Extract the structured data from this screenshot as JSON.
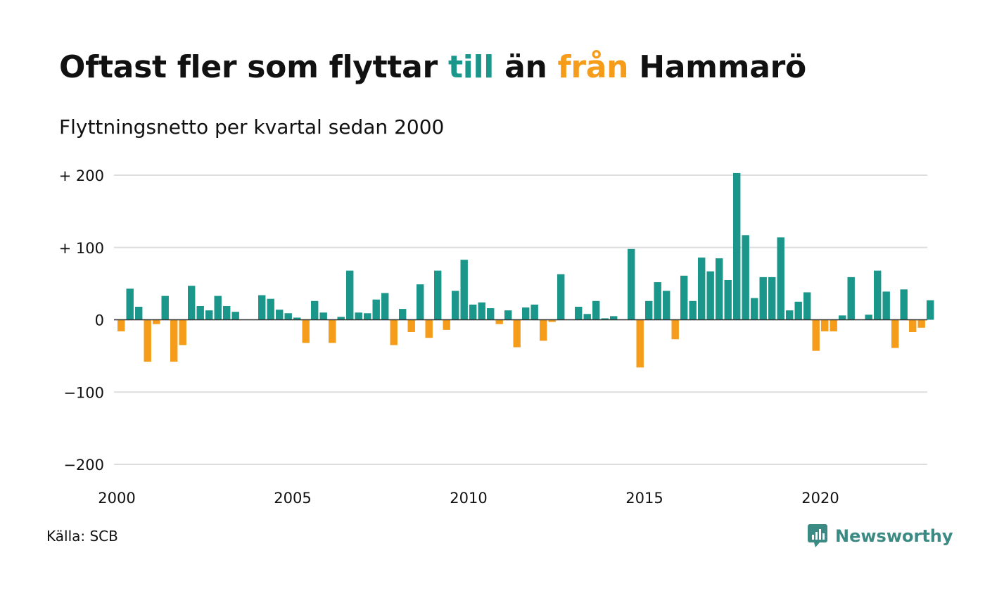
{
  "header": {
    "title_part1": "Oftast fler som flyttar ",
    "title_till": "till",
    "title_part2": " än ",
    "title_fran": "från",
    "title_part3": " Hammarö",
    "subtitle": "Flyttningsnetto per kvartal sedan 2000"
  },
  "colors": {
    "positive": "#1a968a",
    "negative": "#f59c1a",
    "grid": "#dddddd",
    "text": "#111111",
    "brand": "#3b8a84"
  },
  "chart_data": {
    "type": "bar",
    "title": "Oftast fler som flyttar till än från Hammarö",
    "subtitle": "Flyttningsnetto per kvartal sedan 2000",
    "xlabel": "",
    "ylabel": "",
    "x_start": "2000-Q1",
    "ylim": [
      -200,
      200
    ],
    "yticks": [
      {
        "value": 200,
        "label": "+ 200"
      },
      {
        "value": 100,
        "label": "+ 100"
      },
      {
        "value": 0,
        "label": "0"
      },
      {
        "value": -100,
        "label": "−100"
      },
      {
        "value": -200,
        "label": "−200"
      }
    ],
    "xticks": [
      {
        "year": 2000,
        "label": "2000"
      },
      {
        "year": 2005,
        "label": "2005"
      },
      {
        "year": 2010,
        "label": "2010"
      },
      {
        "year": 2015,
        "label": "2015"
      },
      {
        "year": 2020,
        "label": "2020"
      }
    ],
    "grid": true,
    "legend": "none",
    "values": [
      -16,
      43,
      18,
      -58,
      -6,
      33,
      -58,
      -35,
      47,
      19,
      13,
      33,
      19,
      11,
      0,
      0,
      34,
      29,
      14,
      9,
      3,
      -32,
      26,
      10,
      -32,
      4,
      68,
      10,
      9,
      28,
      37,
      -35,
      15,
      -17,
      49,
      -25,
      68,
      -14,
      40,
      83,
      21,
      24,
      16,
      -6,
      13,
      -38,
      17,
      21,
      -29,
      -3,
      63,
      0,
      18,
      8,
      26,
      2,
      5,
      0,
      98,
      -66,
      26,
      52,
      40,
      -27,
      61,
      26,
      86,
      67,
      85,
      55,
      203,
      117,
      30,
      59,
      59,
      114,
      13,
      25,
      38,
      -43,
      -16,
      -16,
      6,
      59,
      0,
      7,
      68,
      39,
      -39,
      42,
      -17,
      -11,
      27
    ]
  },
  "footer": {
    "source": "Källa: SCB",
    "brand": "Newsworthy",
    "brand_icon": "newsworthy-logo-icon"
  }
}
